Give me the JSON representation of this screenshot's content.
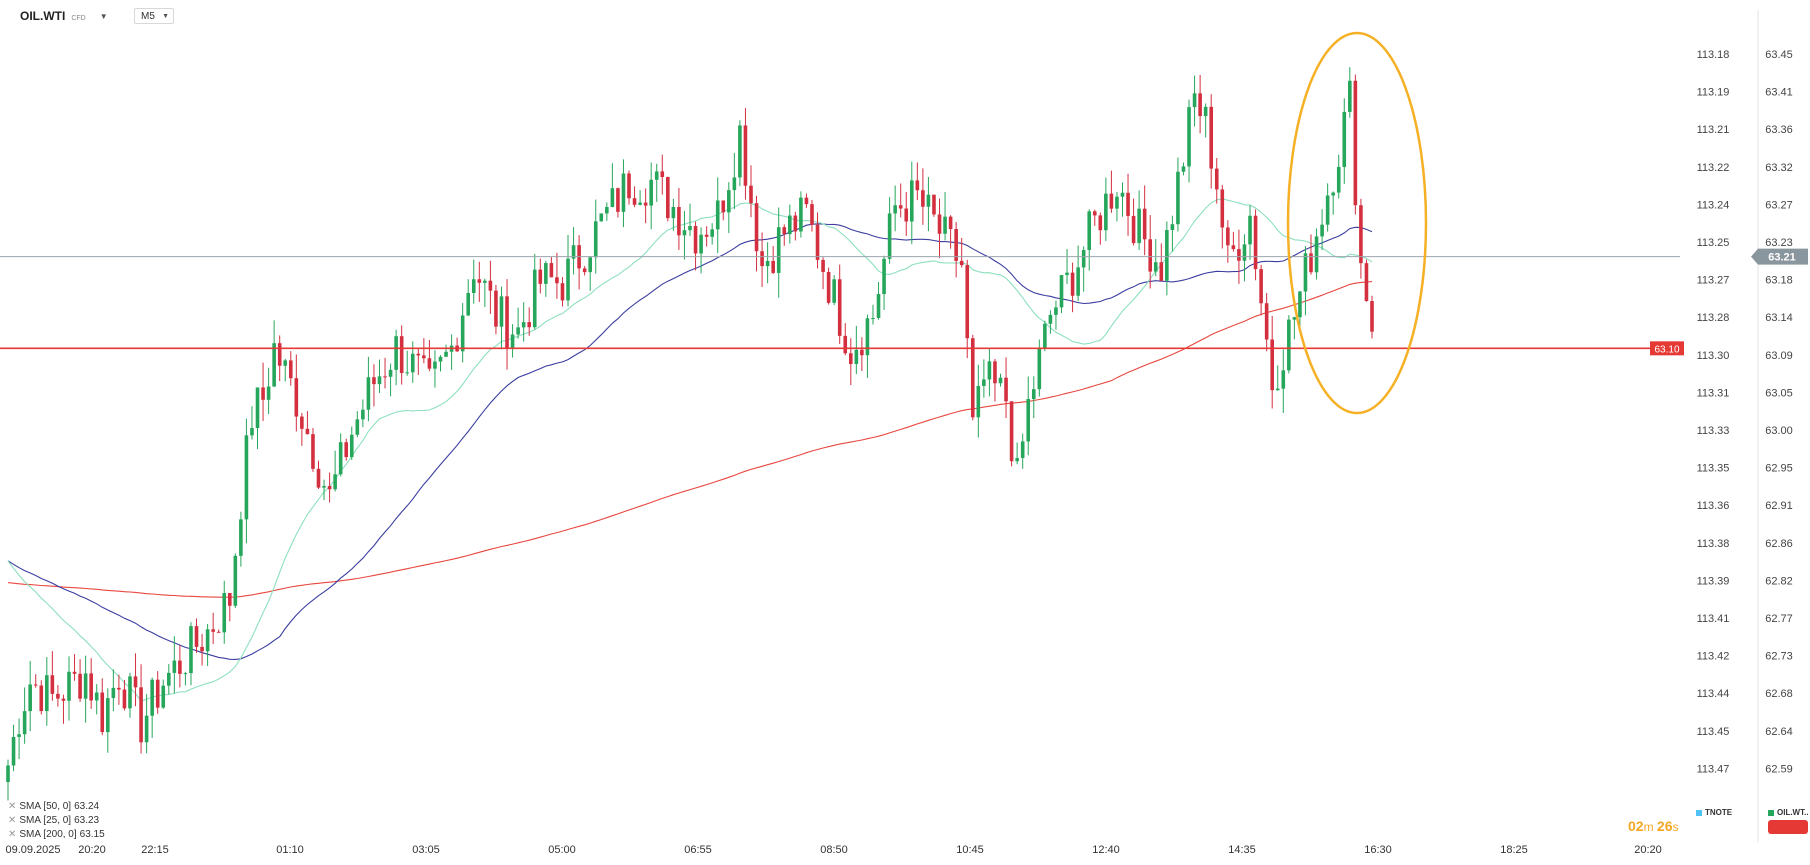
{
  "header": {
    "symbol": "OIL.WTI",
    "instrument_type": "CFD",
    "timeframe": "M5"
  },
  "indicators": [
    {
      "label": "SMA [50, 0]",
      "value": "63.24",
      "color": "#3b3ea0"
    },
    {
      "label": "SMA [25, 0]",
      "value": "63.23",
      "color": "#8de0bd"
    },
    {
      "label": "SMA [200, 0]",
      "value": "63.15",
      "color": "#e8473f"
    }
  ],
  "timer": {
    "minutes": "02",
    "seconds": "26"
  },
  "compare": {
    "tnote": "TNOTE",
    "tnote_color": "#4fc3f7",
    "oil": "OIL.WT..",
    "oil_color": "#26a65b"
  },
  "colors": {
    "up": "#26a65b",
    "down": "#d32f3f",
    "marker": "#f5b025",
    "price_line": "#9aa4ab",
    "level_line": "#e53935"
  },
  "chart_data": {
    "type": "candlestick",
    "symbol": "OIL.WTI",
    "timeframe": "M5",
    "x_ticks": [
      "09.09.2025",
      "20:20",
      "22:15",
      "01:10",
      "03:05",
      "05:00",
      "06:55",
      "08:50",
      "10:45",
      "12:40",
      "14:35",
      "16:30",
      "18:25",
      "20:20"
    ],
    "y_ticks_right": [
      "63.45",
      "63.41",
      "63.36",
      "63.32",
      "63.27",
      "63.23",
      "63.18",
      "63.14",
      "63.09",
      "63.05",
      "63.00",
      "62.95",
      "62.91",
      "62.86",
      "62.82",
      "62.77",
      "62.73",
      "62.68",
      "62.64",
      "62.59"
    ],
    "y_ticks_left": [
      "113.18",
      "113.19",
      "113.21",
      "113.22",
      "113.24",
      "113.25",
      "113.27",
      "113.28",
      "113.30",
      "113.31",
      "113.33",
      "113.35",
      "113.36",
      "113.38",
      "113.39",
      "113.41",
      "113.42",
      "113.44",
      "113.45",
      "113.47"
    ],
    "ylim": [
      62.57,
      63.47
    ],
    "current_price": "63.21",
    "horizontal_level": "63.10",
    "price_anchors": [
      [
        0,
        62.6
      ],
      [
        2,
        62.66
      ],
      [
        4,
        62.7
      ],
      [
        8,
        62.68
      ],
      [
        14,
        62.71
      ],
      [
        17,
        62.66
      ],
      [
        20,
        62.71
      ],
      [
        24,
        62.65
      ],
      [
        28,
        62.7
      ],
      [
        32,
        62.73
      ],
      [
        36,
        62.76
      ],
      [
        40,
        62.8
      ],
      [
        42,
        62.92
      ],
      [
        44,
        63.02
      ],
      [
        46,
        63.04
      ],
      [
        48,
        63.1
      ],
      [
        52,
        63.04
      ],
      [
        56,
        62.96
      ],
      [
        58,
        62.92
      ],
      [
        62,
        63.0
      ],
      [
        66,
        63.06
      ],
      [
        70,
        63.1
      ],
      [
        74,
        63.07
      ],
      [
        76,
        63.05
      ],
      [
        80,
        63.1
      ],
      [
        84,
        63.2
      ],
      [
        88,
        63.14
      ],
      [
        92,
        63.12
      ],
      [
        96,
        63.18
      ],
      [
        100,
        63.18
      ],
      [
        104,
        63.22
      ],
      [
        108,
        63.26
      ],
      [
        112,
        63.3
      ],
      [
        116,
        63.3
      ],
      [
        120,
        63.27
      ],
      [
        124,
        63.24
      ],
      [
        128,
        63.26
      ],
      [
        132,
        63.36
      ],
      [
        136,
        63.2
      ],
      [
        140,
        63.24
      ],
      [
        144,
        63.26
      ],
      [
        148,
        63.18
      ],
      [
        152,
        63.1
      ],
      [
        156,
        63.14
      ],
      [
        160,
        63.27
      ],
      [
        164,
        63.28
      ],
      [
        168,
        63.24
      ],
      [
        172,
        63.2
      ],
      [
        174,
        63.0
      ],
      [
        176,
        63.06
      ],
      [
        180,
        63.04
      ],
      [
        182,
        62.94
      ],
      [
        184,
        63.03
      ],
      [
        188,
        63.14
      ],
      [
        192,
        63.19
      ],
      [
        196,
        63.25
      ],
      [
        200,
        63.3
      ],
      [
        204,
        63.24
      ],
      [
        208,
        63.2
      ],
      [
        212,
        63.33
      ],
      [
        214,
        63.4
      ],
      [
        216,
        63.37
      ],
      [
        218,
        63.3
      ],
      [
        220,
        63.2
      ],
      [
        224,
        63.26
      ],
      [
        228,
        63.06
      ],
      [
        232,
        63.14
      ],
      [
        236,
        63.24
      ],
      [
        240,
        63.34
      ],
      [
        242,
        63.4
      ],
      [
        244,
        63.2
      ],
      [
        246,
        63.14
      ]
    ]
  }
}
